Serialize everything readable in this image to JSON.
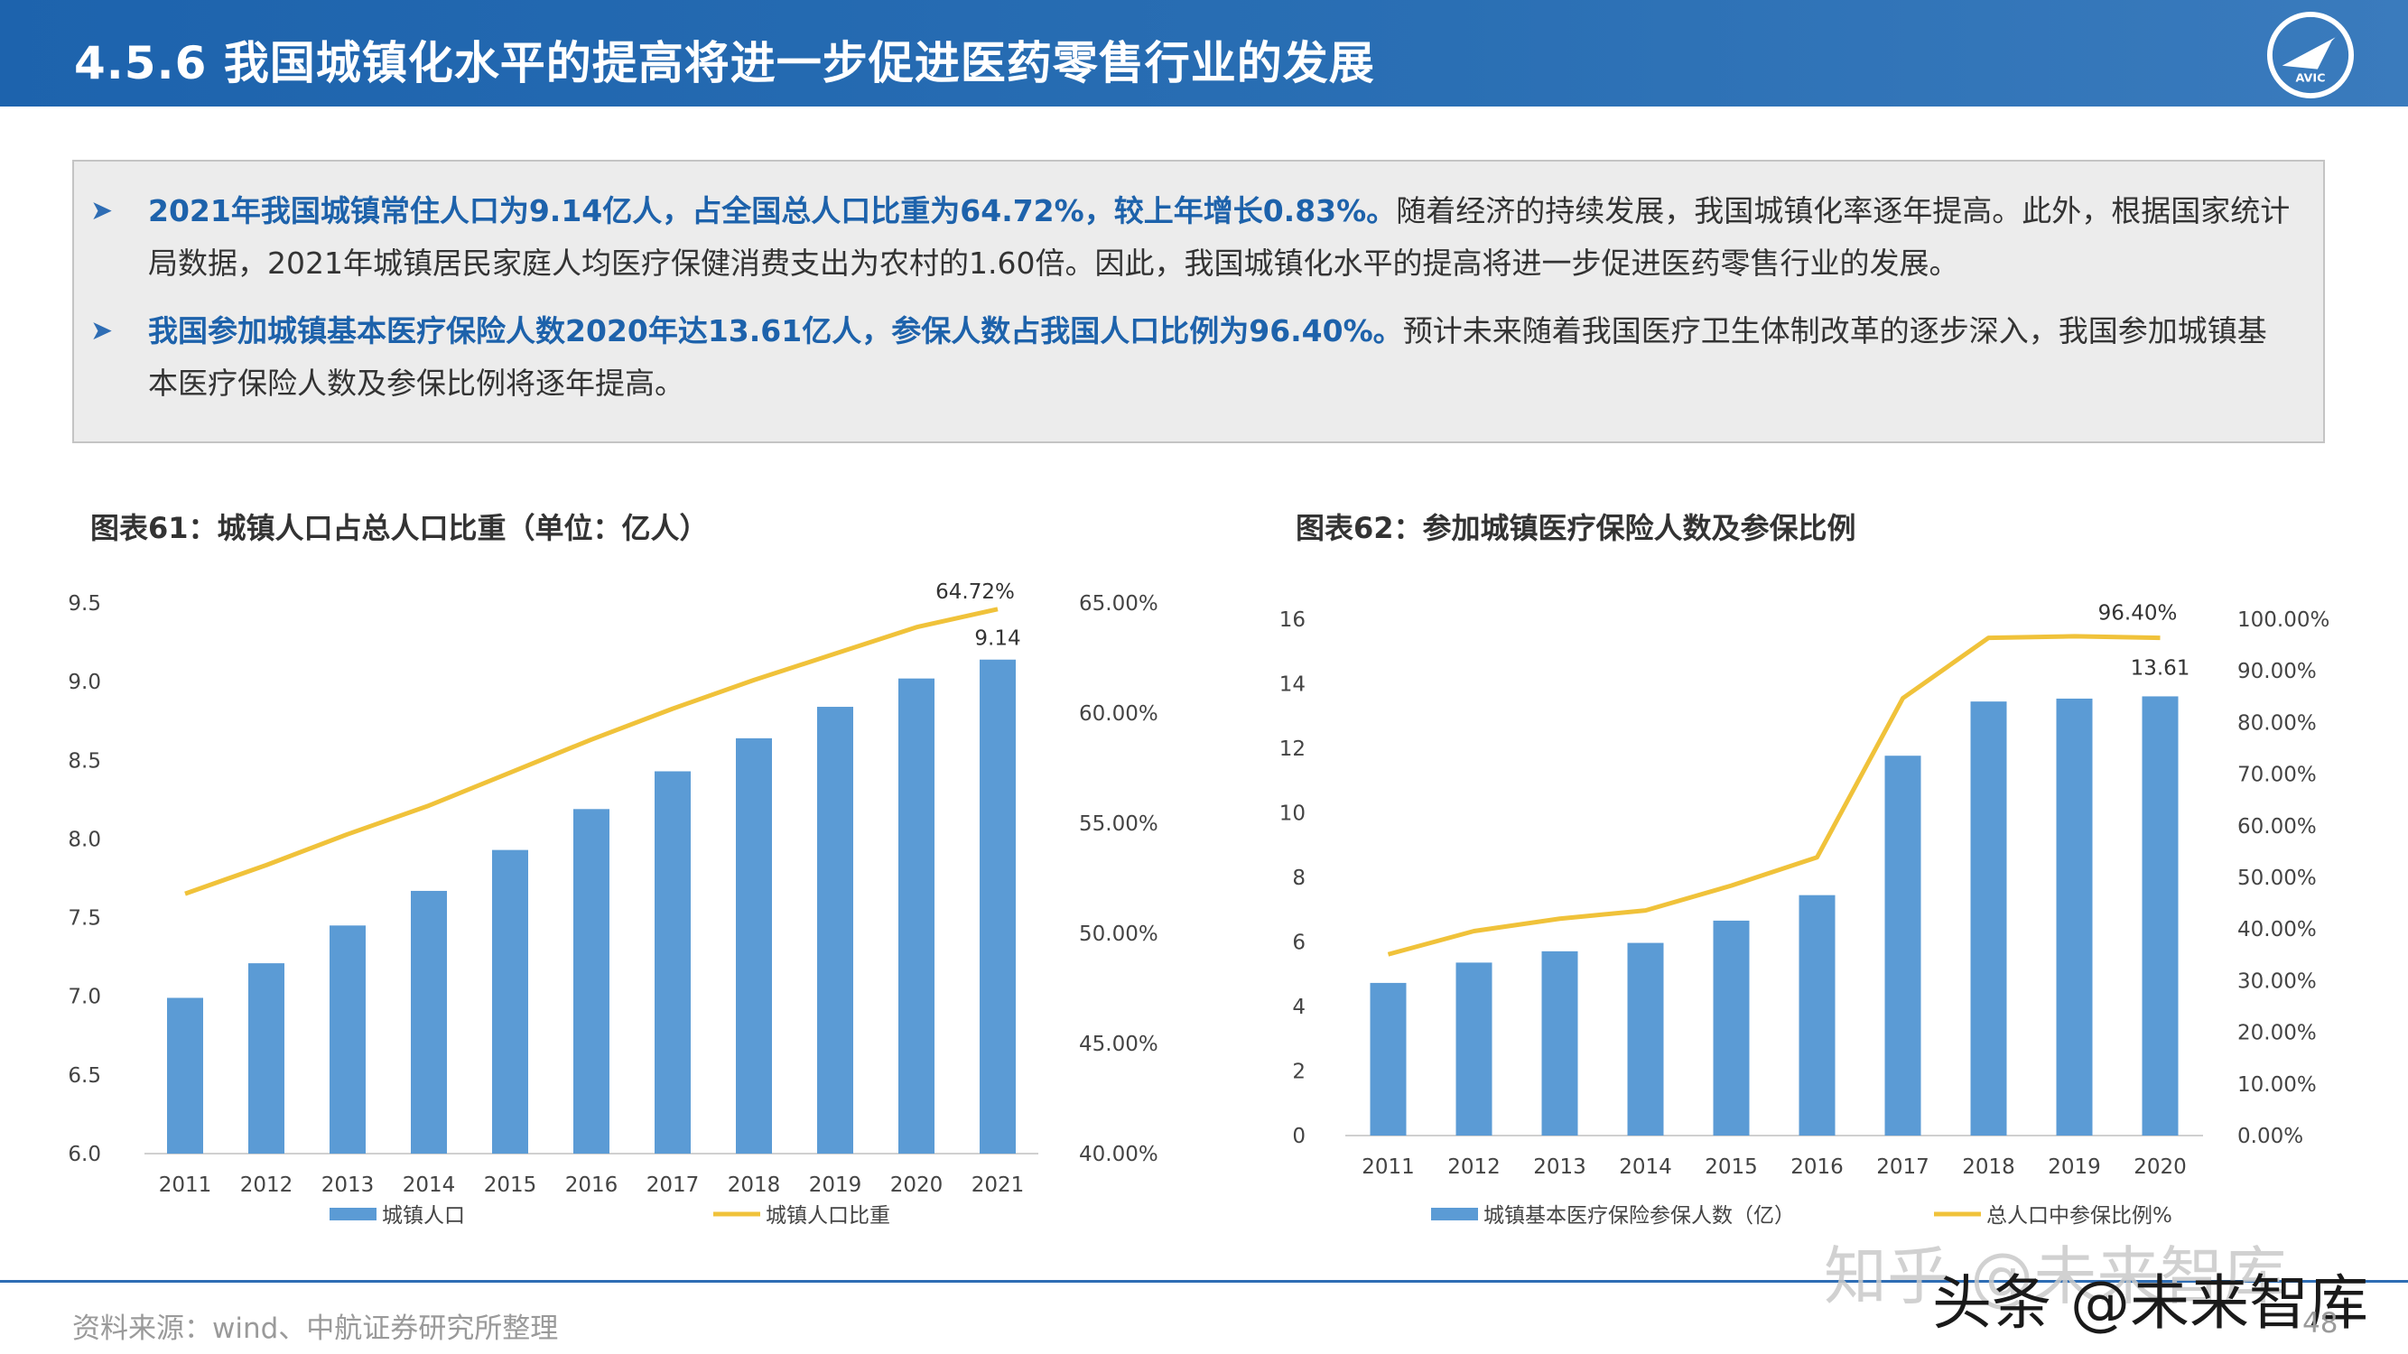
{
  "header": {
    "title": "4.5.6 我国城镇化水平的提高将进一步促进医药零售行业的发展",
    "logo_text": "AVIC"
  },
  "summary": {
    "bullets": [
      {
        "highlight": "2021年我国城镇常住人口为9.14亿人，占全国总人口比重为64.72%，较上年增长0.83%。",
        "text": "随着经济的持续发展，我国城镇化率逐年提高。此外，根据国家统计局数据，2021年城镇居民家庭人均医疗保健消费支出为农村的1.60倍。因此，我国城镇化水平的提高将进一步促进医药零售行业的发展。"
      },
      {
        "highlight": "我国参加城镇基本医疗保险人数2020年达13.61亿人，参保人数占我国人口比例为96.40%。",
        "text": "预计未来随着我国医疗卫生体制改革的逐步深入，我国参加城镇基本医疗保险人数及参保比例将逐年提高。"
      }
    ]
  },
  "colors": {
    "header": "#2a6fb4",
    "bar": "#5b9bd5",
    "line": "#f0c23a",
    "highlight": "#1d62ab"
  },
  "chart_data": [
    {
      "type": "bar+line",
      "title": "图表61：城镇人口占总人口比重（单位：亿人）",
      "categories": [
        "2011",
        "2012",
        "2013",
        "2014",
        "2015",
        "2016",
        "2017",
        "2018",
        "2019",
        "2020",
        "2021"
      ],
      "series": [
        {
          "name": "城镇人口",
          "type": "bar",
          "axis": "left",
          "values": [
            6.99,
            7.21,
            7.45,
            7.67,
            7.93,
            8.19,
            8.43,
            8.64,
            8.84,
            9.02,
            9.14
          ]
        },
        {
          "name": "城镇人口比重",
          "type": "line",
          "axis": "right",
          "values": [
            51.8,
            53.1,
            54.5,
            55.8,
            57.3,
            58.8,
            60.2,
            61.5,
            62.7,
            63.9,
            64.72
          ]
        }
      ],
      "left_axis": {
        "min": 6.0,
        "max": 9.5,
        "ticks": [
          "6.0",
          "6.5",
          "7.0",
          "7.5",
          "8.0",
          "8.5",
          "9.0",
          "9.5"
        ]
      },
      "right_axis": {
        "min": 40,
        "max": 65,
        "ticks": [
          "40.00%",
          "45.00%",
          "50.00%",
          "55.00%",
          "60.00%",
          "65.00%"
        ]
      },
      "data_labels": {
        "bar_last": "9.14",
        "line_last": "64.72%"
      },
      "legend_position": "bottom"
    },
    {
      "type": "bar+line",
      "title": "图表62：参加城镇医疗保险人数及参保比例",
      "categories": [
        "2011",
        "2012",
        "2013",
        "2014",
        "2015",
        "2016",
        "2017",
        "2018",
        "2019",
        "2020"
      ],
      "series": [
        {
          "name": "城镇基本医疗保险参保人数（亿）",
          "type": "bar",
          "axis": "left",
          "values": [
            4.73,
            5.36,
            5.71,
            5.97,
            6.66,
            7.45,
            11.77,
            13.45,
            13.54,
            13.61
          ]
        },
        {
          "name": "总人口中参保比例%",
          "type": "line",
          "axis": "right",
          "values": [
            35.1,
            39.6,
            42.0,
            43.6,
            48.4,
            53.9,
            84.7,
            96.4,
            96.7,
            96.4
          ]
        }
      ],
      "left_axis": {
        "min": 0,
        "max": 16,
        "ticks": [
          "0",
          "2",
          "4",
          "6",
          "8",
          "10",
          "12",
          "14",
          "16"
        ]
      },
      "right_axis": {
        "min": 0,
        "max": 100,
        "ticks": [
          "0.00%",
          "10.00%",
          "20.00%",
          "30.00%",
          "40.00%",
          "50.00%",
          "60.00%",
          "70.00%",
          "80.00%",
          "90.00%",
          "100.00%"
        ]
      },
      "data_labels": {
        "bar_last": "13.61",
        "line_last": "96.40%"
      },
      "legend_position": "bottom"
    }
  ],
  "footer": {
    "source": "资料来源：wind、中航证券研究所整理",
    "page": "48"
  },
  "watermark": {
    "line1": "知乎 @未来智库",
    "line2": "头条 @未来智库"
  }
}
